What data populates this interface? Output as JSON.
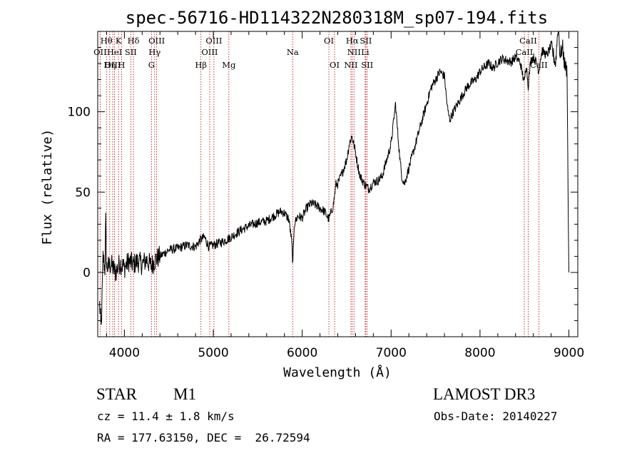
{
  "chart_data": {
    "type": "line",
    "title": "spec-56716-HD114322N280318M_sp07-194.fits",
    "xlabel": "Wavelength (Å)",
    "ylabel": "Flux (relative)",
    "xlim": [
      3700,
      9100
    ],
    "ylim": [
      -40,
      150
    ],
    "x_ticks": [
      4000,
      5000,
      6000,
      7000,
      8000,
      9000
    ],
    "y_ticks": [
      0,
      50,
      100
    ],
    "spectrum_anchors": [
      [
        3720,
        -20
      ],
      [
        3740,
        -35
      ],
      [
        3760,
        10
      ],
      [
        3780,
        2
      ],
      [
        3790,
        32
      ],
      [
        3800,
        3
      ],
      [
        3850,
        5
      ],
      [
        3900,
        0
      ],
      [
        3950,
        6
      ],
      [
        4000,
        3
      ],
      [
        4050,
        7
      ],
      [
        4100,
        5
      ],
      [
        4150,
        7
      ],
      [
        4200,
        5
      ],
      [
        4250,
        8
      ],
      [
        4300,
        4
      ],
      [
        4350,
        8
      ],
      [
        4400,
        10
      ],
      [
        4500,
        14
      ],
      [
        4600,
        15
      ],
      [
        4700,
        17
      ],
      [
        4800,
        16
      ],
      [
        4850,
        20
      ],
      [
        4900,
        22
      ],
      [
        4950,
        16
      ],
      [
        5000,
        17
      ],
      [
        5100,
        19
      ],
      [
        5200,
        22
      ],
      [
        5300,
        26
      ],
      [
        5400,
        29
      ],
      [
        5500,
        31
      ],
      [
        5600,
        32
      ],
      [
        5700,
        36
      ],
      [
        5760,
        38
      ],
      [
        5800,
        37
      ],
      [
        5850,
        33
      ],
      [
        5880,
        20
      ],
      [
        5895,
        5
      ],
      [
        5910,
        30
      ],
      [
        5950,
        35
      ],
      [
        6000,
        34
      ],
      [
        6050,
        40
      ],
      [
        6100,
        43
      ],
      [
        6150,
        42
      ],
      [
        6200,
        40
      ],
      [
        6250,
        38
      ],
      [
        6300,
        33
      ],
      [
        6330,
        38
      ],
      [
        6350,
        42
      ],
      [
        6380,
        55
      ],
      [
        6400,
        55
      ],
      [
        6450,
        62
      ],
      [
        6500,
        70
      ],
      [
        6530,
        80
      ],
      [
        6560,
        85
      ],
      [
        6580,
        80
      ],
      [
        6600,
        75
      ],
      [
        6620,
        68
      ],
      [
        6650,
        60
      ],
      [
        6700,
        55
      ],
      [
        6750,
        52
      ],
      [
        6800,
        56
      ],
      [
        6850,
        57
      ],
      [
        6900,
        60
      ],
      [
        6950,
        70
      ],
      [
        7000,
        80
      ],
      [
        7030,
        95
      ],
      [
        7050,
        105
      ],
      [
        7070,
        90
      ],
      [
        7100,
        70
      ],
      [
        7120,
        60
      ],
      [
        7150,
        55
      ],
      [
        7200,
        65
      ],
      [
        7250,
        75
      ],
      [
        7300,
        85
      ],
      [
        7350,
        95
      ],
      [
        7400,
        105
      ],
      [
        7450,
        115
      ],
      [
        7500,
        120
      ],
      [
        7550,
        125
      ],
      [
        7600,
        122
      ],
      [
        7620,
        110
      ],
      [
        7640,
        100
      ],
      [
        7660,
        95
      ],
      [
        7700,
        100
      ],
      [
        7750,
        105
      ],
      [
        7800,
        110
      ],
      [
        7850,
        115
      ],
      [
        7900,
        118
      ],
      [
        7950,
        120
      ],
      [
        8000,
        125
      ],
      [
        8050,
        128
      ],
      [
        8100,
        130
      ],
      [
        8150,
        127
      ],
      [
        8200,
        131
      ],
      [
        8250,
        133
      ],
      [
        8300,
        132
      ],
      [
        8350,
        131
      ],
      [
        8400,
        134
      ],
      [
        8450,
        131
      ],
      [
        8498,
        118
      ],
      [
        8520,
        130
      ],
      [
        8542,
        116
      ],
      [
        8570,
        132
      ],
      [
        8600,
        134
      ],
      [
        8640,
        130
      ],
      [
        8662,
        125
      ],
      [
        8680,
        133
      ],
      [
        8700,
        138
      ],
      [
        8750,
        135
      ],
      [
        8800,
        141
      ],
      [
        8850,
        130
      ],
      [
        8880,
        155
      ],
      [
        8900,
        135
      ],
      [
        8930,
        140
      ],
      [
        8950,
        130
      ],
      [
        8980,
        125
      ],
      [
        8990,
        50
      ],
      [
        9000,
        0
      ]
    ],
    "spectral_lines": [
      {
        "name": "Hθ",
        "wavelength": 3798,
        "row": 1
      },
      {
        "name": "OII",
        "wavelength": 3727,
        "row": 2
      },
      {
        "name": "OIII",
        "wavelength": 3869,
        "row": 3
      },
      {
        "name": "K",
        "wavelength": 3934,
        "row": 1
      },
      {
        "name": "HeI",
        "wavelength": 3889,
        "row": 2
      },
      {
        "name": "Hη",
        "wavelength": 3835,
        "row": 3
      },
      {
        "name": "Hδ",
        "wavelength": 4102,
        "row": 1
      },
      {
        "name": "SII",
        "wavelength": 4072,
        "row": 2
      },
      {
        "name": "H",
        "wavelength": 3968,
        "row": 3
      },
      {
        "name": "OIII",
        "wavelength": 4363,
        "row": 1
      },
      {
        "name": "Hγ",
        "wavelength": 4340,
        "row": 2
      },
      {
        "name": "G",
        "wavelength": 4305,
        "row": 3
      },
      {
        "name": "OIII",
        "wavelength": 5007,
        "row": 1
      },
      {
        "name": "OIII",
        "wavelength": 4959,
        "row": 2
      },
      {
        "name": "Hβ",
        "wavelength": 4861,
        "row": 3
      },
      {
        "name": "Mg",
        "wavelength": 5175,
        "row": 3
      },
      {
        "name": "Na",
        "wavelength": 5893,
        "row": 2
      },
      {
        "name": "OI",
        "wavelength": 6300,
        "row": 1
      },
      {
        "name": "OI",
        "wavelength": 6364,
        "row": 3
      },
      {
        "name": "Hα",
        "wavelength": 6563,
        "row": 1
      },
      {
        "name": "SII",
        "wavelength": 6716,
        "row": 1
      },
      {
        "name": "NII",
        "wavelength": 6583,
        "row": 2
      },
      {
        "name": "Li",
        "wavelength": 6708,
        "row": 2
      },
      {
        "name": "NII",
        "wavelength": 6548,
        "row": 3
      },
      {
        "name": "SII",
        "wavelength": 6731,
        "row": 3
      },
      {
        "name": "CaII",
        "wavelength": 8542,
        "row": 1
      },
      {
        "name": "CaII",
        "wavelength": 8498,
        "row": 2
      },
      {
        "name": "CaII",
        "wavelength": 8662,
        "row": 3
      }
    ]
  },
  "footer": {
    "object_class": "STAR",
    "subclass": "M1",
    "survey": "LAMOST DR3",
    "cz": "cz = 11.4 ± 1.8 km/s",
    "obs_date": "Obs-Date: 20140227",
    "coords": "RA = 177.63150, DEC =  26.72594"
  }
}
